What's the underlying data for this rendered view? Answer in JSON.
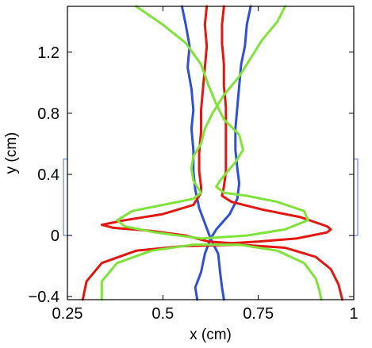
{
  "chart_data": {
    "type": "line",
    "title": "",
    "xlabel": "x (cm)",
    "ylabel": "y (cm)",
    "xlim": [
      0.25,
      1.0
    ],
    "ylim": [
      -0.42,
      1.5
    ],
    "xticks": [
      0.25,
      0.5,
      0.75,
      1.0
    ],
    "xtick_labels": [
      "0.25",
      "0.5",
      "0.75",
      "1"
    ],
    "yticks": [
      -0.4,
      0,
      0.4,
      0.8,
      1.2
    ],
    "ytick_labels": [
      "−0.4",
      "0",
      "0.4",
      "0.8",
      "1.2"
    ],
    "grid": false,
    "legend": "none",
    "colors": {
      "blue": "#2f4fd6",
      "red": "#e3170f",
      "green": "#7fe33a",
      "bracket": "#4a6fd0"
    },
    "series": [
      {
        "color": "blue",
        "points": [
          [
            0.55,
            1.5
          ],
          [
            0.56,
            1.38
          ],
          [
            0.57,
            1.24
          ],
          [
            0.565,
            1.1
          ],
          [
            0.575,
            0.96
          ],
          [
            0.58,
            0.82
          ],
          [
            0.575,
            0.7
          ],
          [
            0.58,
            0.56
          ],
          [
            0.58,
            0.42
          ],
          [
            0.585,
            0.3
          ],
          [
            0.595,
            0.18
          ],
          [
            0.61,
            0.08
          ],
          [
            0.625,
            -0.02
          ],
          [
            0.61,
            -0.12
          ],
          [
            0.6,
            -0.24
          ],
          [
            0.585,
            -0.34
          ],
          [
            0.59,
            -0.42
          ]
        ]
      },
      {
        "color": "blue",
        "points": [
          [
            0.73,
            1.5
          ],
          [
            0.72,
            1.38
          ],
          [
            0.715,
            1.24
          ],
          [
            0.705,
            1.12
          ],
          [
            0.7,
            0.98
          ],
          [
            0.695,
            0.84
          ],
          [
            0.69,
            0.7
          ],
          [
            0.69,
            0.56
          ],
          [
            0.695,
            0.44
          ],
          [
            0.7,
            0.34
          ],
          [
            0.695,
            0.24
          ],
          [
            0.675,
            0.14
          ],
          [
            0.64,
            0.04
          ],
          [
            0.625,
            -0.02
          ],
          [
            0.645,
            -0.12
          ],
          [
            0.65,
            -0.24
          ],
          [
            0.655,
            -0.34
          ],
          [
            0.66,
            -0.42
          ]
        ]
      },
      {
        "color": "red",
        "points": [
          [
            0.615,
            1.5
          ],
          [
            0.61,
            1.38
          ],
          [
            0.615,
            1.24
          ],
          [
            0.61,
            1.1
          ],
          [
            0.605,
            0.96
          ],
          [
            0.6,
            0.82
          ],
          [
            0.6,
            0.68
          ],
          [
            0.595,
            0.54
          ],
          [
            0.595,
            0.42
          ],
          [
            0.6,
            0.32
          ],
          [
            0.6,
            0.28
          ],
          [
            0.58,
            0.2
          ],
          [
            0.5,
            0.14
          ],
          [
            0.4,
            0.1
          ],
          [
            0.34,
            0.07
          ],
          [
            0.37,
            0.05
          ],
          [
            0.47,
            0.03
          ],
          [
            0.56,
            0.0
          ],
          [
            0.62,
            -0.04
          ],
          [
            0.68,
            -0.05
          ],
          [
            0.75,
            -0.04
          ],
          [
            0.85,
            -0.02
          ],
          [
            0.93,
            0.02
          ],
          [
            0.94,
            0.04
          ],
          [
            0.93,
            0.06
          ],
          [
            0.86,
            0.12
          ],
          [
            0.76,
            0.17
          ],
          [
            0.68,
            0.22
          ],
          [
            0.655,
            0.26
          ],
          [
            0.66,
            0.32
          ],
          [
            0.665,
            0.42
          ],
          [
            0.665,
            0.56
          ],
          [
            0.665,
            0.7
          ],
          [
            0.665,
            0.84
          ],
          [
            0.66,
            0.98
          ],
          [
            0.66,
            1.12
          ],
          [
            0.655,
            1.26
          ],
          [
            0.655,
            1.38
          ],
          [
            0.66,
            1.5
          ]
        ]
      },
      {
        "color": "red",
        "points": [
          [
            0.29,
            -0.42
          ],
          [
            0.3,
            -0.3
          ],
          [
            0.34,
            -0.18
          ],
          [
            0.43,
            -0.1
          ],
          [
            0.55,
            -0.07
          ],
          [
            0.7,
            -0.06
          ],
          [
            0.82,
            -0.08
          ],
          [
            0.9,
            -0.14
          ],
          [
            0.94,
            -0.22
          ],
          [
            0.96,
            -0.32
          ],
          [
            0.97,
            -0.42
          ]
        ]
      },
      {
        "color": "green",
        "points": [
          [
            0.43,
            1.5
          ],
          [
            0.5,
            1.38
          ],
          [
            0.56,
            1.26
          ],
          [
            0.6,
            1.12
          ],
          [
            0.62,
            0.98
          ],
          [
            0.64,
            0.86
          ],
          [
            0.66,
            0.76
          ],
          [
            0.7,
            0.66
          ],
          [
            0.71,
            0.56
          ],
          [
            0.69,
            0.48
          ],
          [
            0.67,
            0.42
          ],
          [
            0.65,
            0.36
          ],
          [
            0.64,
            0.32
          ],
          [
            0.66,
            0.28
          ],
          [
            0.72,
            0.26
          ],
          [
            0.8,
            0.22
          ],
          [
            0.87,
            0.16
          ],
          [
            0.88,
            0.1
          ],
          [
            0.82,
            0.04
          ],
          [
            0.72,
            0.0
          ],
          [
            0.6,
            -0.02
          ],
          [
            0.48,
            0.02
          ],
          [
            0.4,
            0.06
          ],
          [
            0.38,
            0.1
          ],
          [
            0.42,
            0.16
          ],
          [
            0.5,
            0.2
          ],
          [
            0.58,
            0.24
          ],
          [
            0.6,
            0.28
          ],
          [
            0.58,
            0.36
          ],
          [
            0.575,
            0.44
          ],
          [
            0.58,
            0.52
          ],
          [
            0.6,
            0.6
          ],
          [
            0.61,
            0.7
          ],
          [
            0.63,
            0.8
          ],
          [
            0.66,
            0.92
          ],
          [
            0.7,
            1.04
          ],
          [
            0.73,
            1.16
          ],
          [
            0.76,
            1.28
          ],
          [
            0.8,
            1.4
          ],
          [
            0.82,
            1.5
          ]
        ]
      },
      {
        "color": "green",
        "points": [
          [
            0.34,
            -0.42
          ],
          [
            0.34,
            -0.3
          ],
          [
            0.38,
            -0.18
          ],
          [
            0.47,
            -0.1
          ],
          [
            0.58,
            -0.06
          ],
          [
            0.7,
            -0.06
          ],
          [
            0.8,
            -0.1
          ],
          [
            0.87,
            -0.18
          ],
          [
            0.9,
            -0.28
          ],
          [
            0.91,
            -0.36
          ],
          [
            0.915,
            -0.42
          ]
        ]
      }
    ]
  }
}
